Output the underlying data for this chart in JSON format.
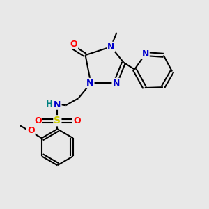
{
  "background_color": "#e8e8e8",
  "bond_color": "#000000",
  "atom_colors": {
    "N": "#0000cc",
    "O": "#ff0000",
    "S": "#cccc00",
    "H": "#008080",
    "C": "#000000"
  },
  "figsize": [
    3.0,
    3.0
  ],
  "dpi": 100
}
